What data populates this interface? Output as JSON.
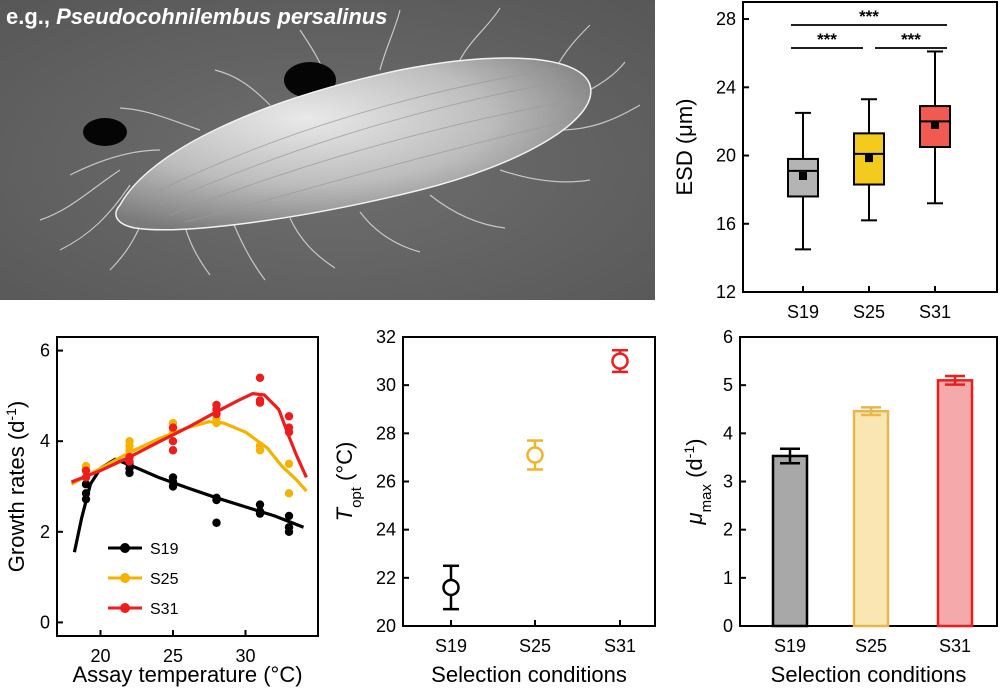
{
  "photo": {
    "caption_prefix": "e.g., ",
    "caption_species": "Pseudocohnilembus persalinus"
  },
  "chart_data": [
    {
      "id": "esd",
      "type": "box",
      "ylabel": "ESD (μm)",
      "ylim": [
        12,
        29
      ],
      "yticks": [
        12,
        16,
        20,
        24,
        28
      ],
      "categories": [
        "S19",
        "S25",
        "S31"
      ],
      "colors": [
        "#b4b4b4",
        "#f2cb1d",
        "#f15a50"
      ],
      "boxes": [
        {
          "min": 14.5,
          "q1": 17.6,
          "median": 19.1,
          "q3": 19.8,
          "max": 22.5,
          "mean": 18.8
        },
        {
          "min": 16.2,
          "q1": 18.3,
          "median": 20.1,
          "q3": 21.3,
          "max": 23.3,
          "mean": 19.85
        },
        {
          "min": 17.2,
          "q1": 20.5,
          "median": 22.0,
          "q3": 22.9,
          "max": 26.1,
          "mean": 21.8
        }
      ],
      "significance": [
        {
          "from": 0,
          "to": 2,
          "level": 1,
          "label": "***"
        },
        {
          "from": 0,
          "to": 1,
          "level": 0,
          "label": "***"
        },
        {
          "from": 1,
          "to": 2,
          "level": 0,
          "label": "***"
        }
      ]
    },
    {
      "id": "growth",
      "type": "scatter+line",
      "xlabel": "Assay temperature (°C)",
      "ylabel": "Growth rates (d",
      "ylabel_sup": "-1",
      "ylabel_end": ")",
      "xlim": [
        17,
        35
      ],
      "ylim": [
        -0.3,
        6.3
      ],
      "xticks": [
        20,
        25,
        30
      ],
      "yticks": [
        0,
        2,
        4,
        6
      ],
      "series": [
        {
          "name": "S19",
          "color": "#000000",
          "points": [
            [
              19,
              2.72
            ],
            [
              19,
              2.85
            ],
            [
              19,
              3.05
            ],
            [
              22,
              3.3
            ],
            [
              22,
              3.4
            ],
            [
              22,
              3.5
            ],
            [
              25,
              3.0
            ],
            [
              25,
              3.1
            ],
            [
              25,
              3.2
            ],
            [
              28,
              2.2
            ],
            [
              28,
              2.7
            ],
            [
              28,
              2.75
            ],
            [
              31,
              2.4
            ],
            [
              31,
              2.45
            ],
            [
              31,
              2.6
            ],
            [
              33,
              2.0
            ],
            [
              33,
              2.1
            ],
            [
              33,
              2.35
            ]
          ],
          "curve": [
            [
              18.2,
              1.55
            ],
            [
              18.7,
              2.3
            ],
            [
              19.3,
              3.05
            ],
            [
              20.0,
              3.4
            ],
            [
              21.0,
              3.6
            ],
            [
              22.0,
              3.48
            ],
            [
              24.0,
              3.2
            ],
            [
              26.0,
              2.97
            ],
            [
              28.0,
              2.75
            ],
            [
              30.0,
              2.55
            ],
            [
              32.0,
              2.35
            ],
            [
              34.0,
              2.1
            ]
          ]
        },
        {
          "name": "S25",
          "color": "#f5b200",
          "points": [
            [
              19,
              3.35
            ],
            [
              19,
              3.45
            ],
            [
              22,
              3.8
            ],
            [
              22,
              3.9
            ],
            [
              22,
              4.0
            ],
            [
              25,
              4.2
            ],
            [
              25,
              4.3
            ],
            [
              25,
              4.4
            ],
            [
              28,
              4.5
            ],
            [
              28,
              4.4
            ],
            [
              31,
              3.8
            ],
            [
              31,
              3.9
            ],
            [
              33,
              2.85
            ],
            [
              33,
              3.5
            ]
          ],
          "curve": [
            [
              18.0,
              3.05
            ],
            [
              20.0,
              3.4
            ],
            [
              22.0,
              3.75
            ],
            [
              24.0,
              4.05
            ],
            [
              26.0,
              4.3
            ],
            [
              27.5,
              4.43
            ],
            [
              28.5,
              4.4
            ],
            [
              30.0,
              4.2
            ],
            [
              31.5,
              3.85
            ],
            [
              32.5,
              3.45
            ],
            [
              33.5,
              3.15
            ],
            [
              34.2,
              2.9
            ]
          ]
        },
        {
          "name": "S31",
          "color": "#ef1c1c",
          "points": [
            [
              19,
              3.2
            ],
            [
              19,
              3.35
            ],
            [
              22,
              3.55
            ],
            [
              22,
              3.65
            ],
            [
              25,
              3.8
            ],
            [
              25,
              4.0
            ],
            [
              25,
              4.3
            ],
            [
              28,
              4.6
            ],
            [
              28,
              4.7
            ],
            [
              28,
              4.8
            ],
            [
              31,
              4.85
            ],
            [
              31,
              4.9
            ],
            [
              31,
              5.4
            ],
            [
              33,
              4.2
            ],
            [
              33,
              4.3
            ],
            [
              33,
              4.55
            ]
          ],
          "curve": [
            [
              18.0,
              3.1
            ],
            [
              20.0,
              3.35
            ],
            [
              22.0,
              3.65
            ],
            [
              24.0,
              3.98
            ],
            [
              26.0,
              4.3
            ],
            [
              28.0,
              4.65
            ],
            [
              29.5,
              4.9
            ],
            [
              30.5,
              5.05
            ],
            [
              31.3,
              5.02
            ],
            [
              32.3,
              4.7
            ],
            [
              33.0,
              4.1
            ],
            [
              33.5,
              3.7
            ],
            [
              34.2,
              3.2
            ]
          ]
        }
      ]
    },
    {
      "id": "topt",
      "type": "errorbar",
      "xlabel": "Selection conditions",
      "ylabel_main": "T",
      "ylabel_sub": "opt",
      "ylabel_unit": " (°C)",
      "ylim": [
        20,
        32
      ],
      "yticks": [
        20,
        22,
        24,
        26,
        28,
        30,
        32
      ],
      "categories": [
        "S19",
        "S25",
        "S31"
      ],
      "colors": [
        "#000000",
        "#f0b429",
        "#ef1c1c"
      ],
      "values": [
        21.6,
        27.1,
        31.0
      ],
      "errors": [
        0.9,
        0.6,
        0.45
      ]
    },
    {
      "id": "mumax",
      "type": "bar",
      "xlabel": "Selection conditions",
      "ylabel_main": "μ",
      "ylabel_sub": "max",
      "ylabel_unit": " (d",
      "ylabel_sup": "-1",
      "ylabel_end": ")",
      "ylim": [
        0,
        6
      ],
      "yticks": [
        0,
        1,
        2,
        3,
        4,
        5,
        6
      ],
      "categories": [
        "S19",
        "S25",
        "S31"
      ],
      "fills": [
        "#a8a8a8",
        "#f9e6b3",
        "#f4a9ab"
      ],
      "strokes": [
        "#000000",
        "#eab54a",
        "#ef1c1c"
      ],
      "values": [
        3.53,
        4.46,
        5.1
      ],
      "errors": [
        0.15,
        0.08,
        0.09
      ]
    }
  ]
}
